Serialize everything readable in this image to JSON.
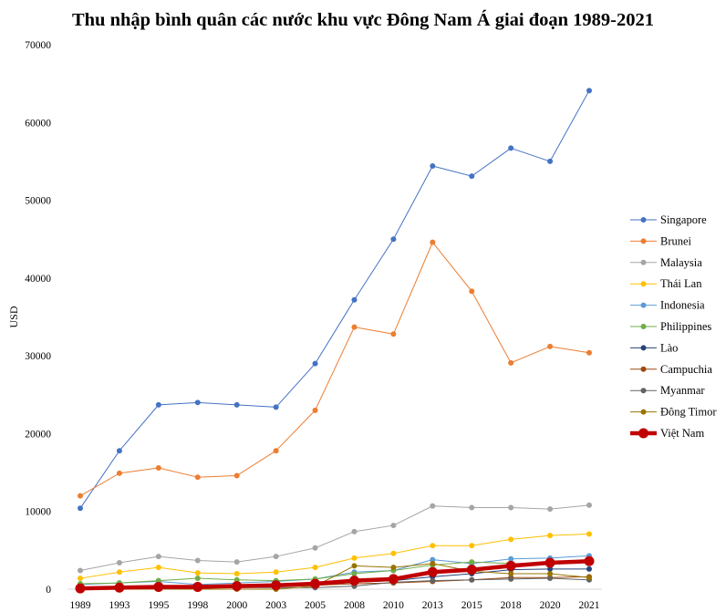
{
  "chart_data": {
    "type": "line",
    "title": "Thu nhập bình quân các nước khu vực Đông Nam Á giai đoạn 1989-2021",
    "xlabel": "",
    "ylabel": "USD",
    "ylim": [
      0,
      70000
    ],
    "yticks": [
      0,
      10000,
      20000,
      30000,
      40000,
      50000,
      60000,
      70000
    ],
    "grid": false,
    "legend_position": "right",
    "categories": [
      "1989",
      "1993",
      "1995",
      "1998",
      "2000",
      "2003",
      "2005",
      "2008",
      "2010",
      "2013",
      "2015",
      "2018",
      "2020",
      "2021"
    ],
    "series": [
      {
        "name": "Singapore",
        "color": "#4472C4",
        "values": [
          10400,
          17800,
          23700,
          24000,
          23700,
          23400,
          29000,
          37200,
          45000,
          54400,
          53100,
          56700,
          55000,
          64100
        ]
      },
      {
        "name": "Brunei",
        "color": "#ED7D31",
        "values": [
          12000,
          14900,
          15600,
          14400,
          14600,
          17800,
          23000,
          33700,
          32800,
          44600,
          38300,
          29100,
          31200,
          30400
        ]
      },
      {
        "name": "Malaysia",
        "color": "#A5A5A5",
        "values": [
          2400,
          3400,
          4200,
          3700,
          3500,
          4200,
          5300,
          7400,
          8200,
          10700,
          10500,
          10500,
          10300,
          10800
        ]
      },
      {
        "name": "Thái Lan",
        "color": "#FFC000",
        "values": [
          1400,
          2200,
          2800,
          2100,
          2000,
          2200,
          2800,
          4000,
          4600,
          5600,
          5600,
          6400,
          6900,
          7100
        ]
      },
      {
        "name": "Indonesia",
        "color": "#5B9BD5",
        "values": [
          600,
          800,
          1000,
          600,
          800,
          1000,
          1300,
          2200,
          2400,
          3800,
          3300,
          3900,
          4000,
          4300
        ]
      },
      {
        "name": "Philippines",
        "color": "#70AD47",
        "values": [
          700,
          800,
          1100,
          1400,
          1200,
          1100,
          1300,
          2000,
          2400,
          3100,
          3500,
          3300,
          3300,
          3600
        ]
      },
      {
        "name": "Lào",
        "color": "#264478",
        "values": [
          200,
          300,
          400,
          300,
          300,
          400,
          500,
          900,
          1100,
          1600,
          2000,
          2500,
          2600,
          2600
        ]
      },
      {
        "name": "Campuchia",
        "color": "#9E480E",
        "values": [
          100,
          200,
          300,
          300,
          300,
          300,
          500,
          700,
          800,
          1000,
          1200,
          1500,
          1500,
          1600
        ]
      },
      {
        "name": "Myanmar",
        "color": "#636363",
        "values": [
          100,
          100,
          200,
          200,
          200,
          200,
          200,
          400,
          900,
          1100,
          1200,
          1300,
          1400,
          1200
        ]
      },
      {
        "name": "Đông Timor",
        "color": "#997300",
        "values": [
          0,
          0,
          0,
          0,
          0,
          0,
          400,
          3000,
          2800,
          3300,
          2300,
          2000,
          2000,
          1500
        ]
      },
      {
        "name": "Việt Nam",
        "color": "#C00000",
        "values": [
          100,
          200,
          300,
          300,
          400,
          500,
          700,
          1100,
          1300,
          2200,
          2500,
          3000,
          3400,
          3600
        ]
      }
    ]
  }
}
